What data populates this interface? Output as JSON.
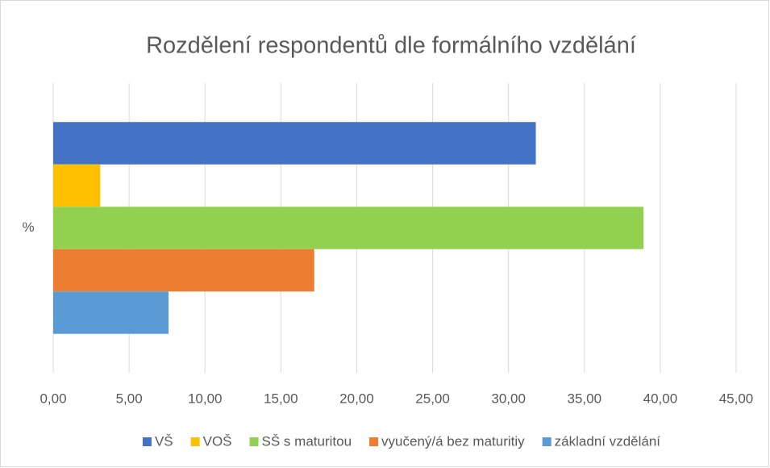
{
  "chart_data": {
    "type": "hbar",
    "title": "Rozdělení respondentů dle formálního vzdělání",
    "categories": [
      "%"
    ],
    "series": [
      {
        "name": "VŠ",
        "color": "#4472c4",
        "values": [
          31.8
        ]
      },
      {
        "name": "VOŠ",
        "color": "#ffc000",
        "values": [
          3.1
        ]
      },
      {
        "name": "SŠ s maturitou",
        "color": "#92d050",
        "values": [
          38.9
        ]
      },
      {
        "name": "vyučený/á bez maturitiy",
        "color": "#ed7d31",
        "values": [
          17.2
        ]
      },
      {
        "name": "základní vzdělání",
        "color": "#5b9bd5",
        "values": [
          7.6
        ]
      }
    ],
    "xlim": [
      0,
      45
    ],
    "xticks": [
      {
        "value": 0,
        "label": "0,00"
      },
      {
        "value": 5,
        "label": "5,00"
      },
      {
        "value": 10,
        "label": "10,00"
      },
      {
        "value": 15,
        "label": "15,00"
      },
      {
        "value": 20,
        "label": "20,00"
      },
      {
        "value": 25,
        "label": "25,00"
      },
      {
        "value": 30,
        "label": "30,00"
      },
      {
        "value": 35,
        "label": "35,00"
      },
      {
        "value": 40,
        "label": "40,00"
      },
      {
        "value": 45,
        "label": "45,00"
      }
    ],
    "grid": true,
    "legend": "bottom"
  }
}
